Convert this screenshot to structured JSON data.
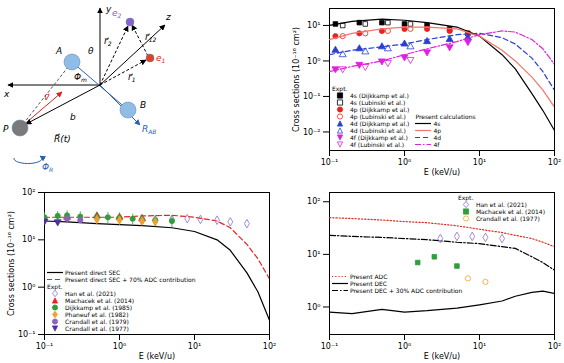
{
  "diagram": {
    "labels": [
      {
        "text": "x"
      },
      {
        "text": "y"
      },
      {
        "text": "z"
      },
      {
        "text": "A"
      },
      {
        "text": "B"
      },
      {
        "text": "P"
      },
      {
        "text": "e",
        "sub": "1"
      },
      {
        "text": "e",
        "sub": "2"
      },
      {
        "text": "r⃗",
        "sub": "1"
      },
      {
        "text": "r⃗",
        "sub": "2"
      },
      {
        "text": "r⃗",
        "sub": "12"
      },
      {
        "text": "R",
        "sub": "AB"
      },
      {
        "text": "b"
      },
      {
        "text": "v⃗"
      },
      {
        "text": "R⃗(t)"
      },
      {
        "text": "θ"
      },
      {
        "text": "Φ",
        "sub": "m"
      },
      {
        "text": "Φ",
        "sub": "R"
      }
    ]
  },
  "chart_data": [
    {
      "type": "line",
      "log": true,
      "grid": false,
      "legend": "lower left",
      "xlabel": "E (keV/u)",
      "ylabel": "Cross sections (10⁻¹⁶ cm²)",
      "xlim": [
        0.1,
        100
      ],
      "ylim": [
        0.003,
        30
      ],
      "xticks": [
        {
          "value": 0.1,
          "label": "10⁻¹"
        },
        {
          "value": 1,
          "label": "10⁰"
        },
        {
          "value": 10,
          "label": "10¹"
        },
        {
          "value": 100,
          "label": "10²"
        }
      ],
      "yticks": [
        {
          "value": 0.01,
          "label": "10⁻²"
        },
        {
          "value": 0.1,
          "label": "10⁻¹"
        },
        {
          "value": 1,
          "label": "10⁰"
        },
        {
          "value": 10,
          "label": "10¹"
        }
      ],
      "legend_titles": {
        "scatter": "Expt.",
        "line": "Present calculations"
      },
      "series": [
        {
          "name": "4s (Dijkkamp et al.)",
          "type": "scatter",
          "marker": "square",
          "color": "#000000",
          "x": [
            0.12,
            0.25,
            0.5,
            1,
            2,
            4,
            7
          ],
          "values": [
            11,
            12,
            12,
            11,
            10,
            8,
            6
          ]
        },
        {
          "name": "4s (Lubinski et al.)",
          "type": "scatter",
          "marker": "square-open",
          "color": "#000000",
          "x": [
            0.15,
            0.3,
            0.6,
            1.2
          ],
          "values": [
            10,
            11,
            12,
            11
          ]
        },
        {
          "name": "4p (Dijkkamp et al.)",
          "type": "scatter",
          "marker": "circle",
          "color": "#e8231f",
          "x": [
            0.12,
            0.25,
            0.5,
            1,
            2,
            4,
            7
          ],
          "values": [
            5,
            6,
            7,
            8,
            8,
            7,
            6
          ]
        },
        {
          "name": "4p (Lubinski et al.)",
          "type": "scatter",
          "marker": "circle-open",
          "color": "#e8231f",
          "x": [
            0.15,
            0.3,
            0.6,
            1.2
          ],
          "values": [
            5,
            6,
            7,
            8
          ]
        },
        {
          "name": "4d (Dijkkamp et al.)",
          "type": "scatter",
          "marker": "triangle-up",
          "color": "#2a3fd1",
          "x": [
            0.12,
            0.25,
            0.5,
            1,
            2,
            4,
            7
          ],
          "values": [
            2,
            2.2,
            2.5,
            3,
            3.5,
            4,
            4.5
          ]
        },
        {
          "name": "4d (Lubinski et al.)",
          "type": "scatter",
          "marker": "triangle-up-open",
          "color": "#2a3fd1",
          "x": [
            0.15,
            0.3,
            0.6,
            1.2
          ],
          "values": [
            1.5,
            1.8,
            2.2,
            2.5
          ]
        },
        {
          "name": "4f (Dijkkamp et al.)",
          "type": "scatter",
          "marker": "triangle-down",
          "color": "#e020e0",
          "x": [
            0.12,
            0.25,
            0.5,
            1,
            2,
            4,
            7
          ],
          "values": [
            0.6,
            0.8,
            1,
            1.3,
            1.8,
            2.5,
            3.5
          ]
        },
        {
          "name": "4f (Lubinski et al.)",
          "type": "scatter",
          "marker": "triangle-down-open",
          "color": "#e020e0",
          "x": [
            0.15,
            0.3,
            0.6,
            1.2
          ],
          "values": [
            0.6,
            0.7,
            0.9,
            1.1
          ]
        },
        {
          "name": "4s",
          "type": "line",
          "line_style": "solid",
          "color": "#000000",
          "x": [
            0.1,
            0.2,
            0.5,
            1,
            2,
            5,
            10,
            20,
            30,
            50,
            70,
            100
          ],
          "values": [
            10,
            13,
            15,
            14,
            12,
            9,
            5,
            1.5,
            0.6,
            0.12,
            0.04,
            0.011
          ]
        },
        {
          "name": "4p",
          "type": "line",
          "line_style": "solid",
          "color": "#f4756b",
          "x": [
            0.1,
            0.2,
            0.5,
            1,
            2,
            5,
            10,
            20,
            30,
            50,
            70,
            100
          ],
          "values": [
            4,
            6,
            8,
            9,
            9,
            8,
            5,
            2,
            1,
            0.35,
            0.15,
            0.05
          ]
        },
        {
          "name": "4d",
          "type": "line",
          "line_style": "dashed",
          "color": "#2a3fd1",
          "x": [
            0.1,
            0.2,
            0.5,
            1,
            2,
            5,
            10,
            20,
            30,
            50,
            70,
            100
          ],
          "values": [
            1.5,
            2,
            2.5,
            3,
            4,
            5.5,
            6,
            4.5,
            3,
            1.2,
            0.5,
            0.15
          ]
        },
        {
          "name": "4f",
          "type": "line",
          "line_style": "dashdot",
          "color": "#e020e0",
          "x": [
            0.1,
            0.2,
            0.5,
            1,
            2,
            5,
            10,
            20,
            30,
            50,
            70,
            100
          ],
          "values": [
            0.5,
            0.7,
            1,
            1.5,
            2.2,
            3.5,
            5.5,
            7,
            6.5,
            4,
            2.2,
            0.8
          ]
        }
      ]
    },
    {
      "type": "line",
      "log": true,
      "grid": false,
      "legend": "lower left",
      "xlabel": "E (keV/u)",
      "ylabel": "Cross sections (10⁻¹⁶ cm²)",
      "xlim": [
        0.1,
        100
      ],
      "ylim": [
        0.1,
        100
      ],
      "xticks": [
        {
          "value": 0.1,
          "label": "10⁻¹"
        },
        {
          "value": 1,
          "label": "10⁰"
        },
        {
          "value": 10,
          "label": "10¹"
        },
        {
          "value": 100,
          "label": "10²"
        }
      ],
      "yticks": [
        {
          "value": 0.1,
          "label": "10⁻¹"
        },
        {
          "value": 1,
          "label": "10⁰"
        },
        {
          "value": 10,
          "label": "10¹"
        },
        {
          "value": 100,
          "label": "10²"
        }
      ],
      "legend_titles": {
        "scatter": "Expt."
      },
      "series": [
        {
          "name": "Present direct SEC",
          "type": "line",
          "line_style": "solid",
          "color": "#000000",
          "x": [
            0.1,
            0.2,
            0.5,
            1,
            2,
            5,
            10,
            20,
            30,
            50,
            70,
            100
          ],
          "values": [
            25,
            24,
            22,
            21,
            20,
            18,
            15,
            10,
            6,
            2,
            0.8,
            0.2
          ]
        },
        {
          "name": "Present direct SEC + 70% ADC contribution",
          "type": "line",
          "line_style": "dashed",
          "color": "#e8231f",
          "x": [
            0.1,
            0.2,
            0.5,
            1,
            2,
            5,
            10,
            20,
            30,
            50,
            70,
            100
          ],
          "values": [
            30,
            30,
            30,
            30,
            32,
            33,
            30,
            25,
            18,
            8,
            4,
            1.5
          ]
        },
        {
          "name": "Han et al. (2021)",
          "type": "scatter",
          "marker": "diamond-open",
          "color": "#8a6fd1",
          "x": [
            2,
            3,
            5,
            8,
            12,
            20,
            30,
            50
          ],
          "values": [
            25,
            26,
            27,
            28,
            27,
            26,
            24,
            22
          ]
        },
        {
          "name": "Machacek et al. (2014)",
          "type": "scatter",
          "marker": "triangle-up",
          "color": "#e8231f",
          "x": [
            0.2,
            0.5,
            1,
            2
          ],
          "values": [
            30,
            32,
            30,
            28
          ]
        },
        {
          "name": "Dijkkamp et al. (1985)",
          "type": "scatter",
          "marker": "circle",
          "color": "#2e9e3a",
          "x": [
            0.1,
            0.15,
            0.2,
            0.3,
            0.5,
            0.7,
            1,
            1.5,
            2,
            3,
            5
          ],
          "values": [
            30,
            32,
            33,
            31,
            30,
            30,
            29,
            28,
            27,
            26,
            25
          ],
          "errors": [
            8,
            8,
            8,
            8,
            8,
            8,
            8,
            7,
            7,
            7,
            7
          ]
        },
        {
          "name": "Phaneuf et al. (1982)",
          "type": "scatter",
          "marker": "diamond",
          "color": "#f0a030",
          "x": [
            0.5,
            1,
            2,
            3
          ],
          "values": [
            27,
            26,
            25,
            24
          ]
        },
        {
          "name": "Crandall et al. (1979)",
          "type": "scatter",
          "marker": "circle",
          "color": "#9060c0",
          "x": [
            0.2,
            0.3
          ],
          "values": [
            28,
            26
          ]
        },
        {
          "name": "Crandall et al. (1977)",
          "type": "scatter",
          "marker": "triangle-down",
          "color": "#5030a0",
          "x": [
            0.1,
            0.15
          ],
          "values": [
            25,
            24
          ]
        }
      ]
    },
    {
      "type": "line",
      "log": true,
      "grid": false,
      "legend": "lower left",
      "xlabel": "E (keV/u)",
      "xlim": [
        0.1,
        100
      ],
      "ylim": [
        0.3,
        150
      ],
      "xticks": [
        {
          "value": 0.1,
          "label": "10⁻¹"
        },
        {
          "value": 1,
          "label": "10⁰"
        },
        {
          "value": 10,
          "label": "10¹"
        },
        {
          "value": 100,
          "label": "10²"
        }
      ],
      "yticks": [
        {
          "value": 1,
          "label": "10⁰"
        },
        {
          "value": 10,
          "label": "10¹"
        },
        {
          "value": 100,
          "label": "10²"
        }
      ],
      "legend_titles": {
        "scatter": "Expt."
      },
      "series": [
        {
          "name": "Present ADC",
          "type": "line",
          "line_style": "dotted",
          "color": "#e8231f",
          "x": [
            0.1,
            0.2,
            0.5,
            1,
            2,
            5,
            10,
            20,
            30,
            50,
            70,
            100
          ],
          "values": [
            50,
            48,
            45,
            42,
            40,
            35,
            30,
            26,
            23,
            20,
            17,
            14
          ]
        },
        {
          "name": "Present DEC",
          "type": "line",
          "line_style": "solid",
          "color": "#000000",
          "x": [
            0.1,
            0.2,
            0.5,
            1,
            2,
            5,
            10,
            20,
            30,
            50,
            70,
            100
          ],
          "values": [
            0.8,
            0.75,
            0.9,
            0.8,
            0.85,
            0.95,
            1.1,
            1.3,
            1.6,
            1.9,
            2,
            1.8
          ]
        },
        {
          "name": "Present DEC + 30% ADC contribution",
          "type": "line",
          "line_style": "dashdot",
          "color": "#000000",
          "x": [
            0.1,
            0.2,
            0.5,
            1,
            2,
            5,
            10,
            20,
            30,
            50,
            70,
            100
          ],
          "values": [
            23,
            22,
            21,
            20,
            19,
            17,
            16,
            14,
            13,
            9,
            7,
            5
          ]
        },
        {
          "name": "Han et al. (2021)",
          "type": "scatter",
          "marker": "diamond-open",
          "color": "#8a6fd1",
          "x": [
            3,
            5,
            8,
            12,
            20
          ],
          "values": [
            20,
            22,
            22,
            21,
            20
          ]
        },
        {
          "name": "Machacek et al. (2014)",
          "type": "scatter",
          "marker": "square",
          "color": "#2e9e3a",
          "x": [
            1.5,
            2.5,
            5
          ],
          "values": [
            7,
            9,
            6
          ]
        },
        {
          "name": "Crandall et al. (1977)",
          "type": "scatter",
          "marker": "circle-open",
          "color": "#f0a030",
          "x": [
            7,
            12
          ],
          "values": [
            3.5,
            3
          ]
        }
      ]
    }
  ]
}
